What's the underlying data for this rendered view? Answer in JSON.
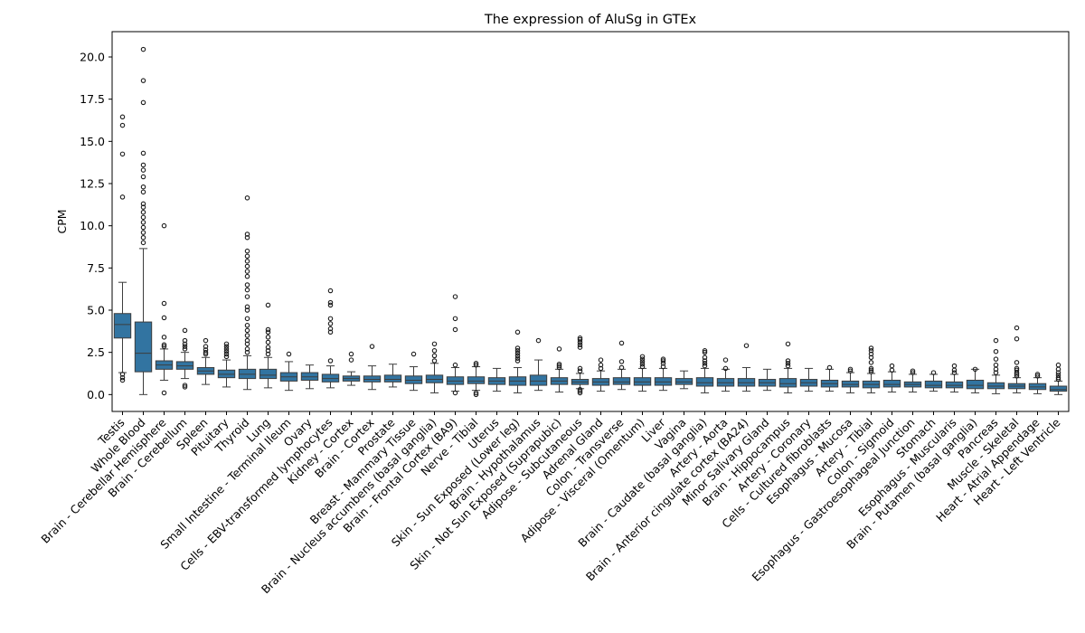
{
  "chart_data": {
    "type": "box",
    "title": "The expression of AluSg in GTEx",
    "xlabel": "",
    "ylabel": "CPM",
    "ylim": [
      -1.0,
      21.5
    ],
    "yticks": [
      0.0,
      2.5,
      5.0,
      7.5,
      10.0,
      12.5,
      15.0,
      17.5,
      20.0
    ],
    "ytick_labels": [
      "0.0",
      "2.5",
      "5.0",
      "7.5",
      "10.0",
      "12.5",
      "15.0",
      "17.5",
      "20.0"
    ],
    "grid": false,
    "box_color": "#3274a1",
    "categories": [
      "Testis",
      "Whole Blood",
      "Brain - Cerebellar Hemisphere",
      "Brain - Cerebellum",
      "Spleen",
      "Pituitary",
      "Thyroid",
      "Lung",
      "Small Intestine - Terminal Ileum",
      "Ovary",
      "Cells - EBV-transformed lymphocytes",
      "Kidney - Cortex",
      "Brain - Cortex",
      "Prostate",
      "Breast - Mammary Tissue",
      "Brain - Nucleus accumbens (basal ganglia)",
      "Brain - Frontal Cortex (BA9)",
      "Nerve - Tibial",
      "Uterus",
      "Skin - Sun Exposed (Lower leg)",
      "Brain - Hypothalamus",
      "Skin - Not Sun Exposed (Suprapubic)",
      "Adipose - Subcutaneous",
      "Adrenal Gland",
      "Colon - Transverse",
      "Adipose - Visceral (Omentum)",
      "Liver",
      "Vagina",
      "Brain - Caudate (basal ganglia)",
      "Artery - Aorta",
      "Brain - Anterior cingulate cortex (BA24)",
      "Minor Salivary Gland",
      "Brain - Hippocampus",
      "Artery - Coronary",
      "Cells - Cultured fibroblasts",
      "Esophagus - Mucosa",
      "Artery - Tibial",
      "Colon - Sigmoid",
      "Esophagus - Gastroesophageal Junction",
      "Stomach",
      "Esophagus - Muscularis",
      "Brain - Putamen (basal ganglia)",
      "Pancreas",
      "Muscle - Skeletal",
      "Heart - Atrial Appendage",
      "Heart - Left Ventricle"
    ],
    "boxes": [
      {
        "whislo": 1.3,
        "q1": 3.35,
        "med": 4.15,
        "q3": 4.8,
        "whishi": 6.65,
        "fliers": [
          1.2,
          1.0,
          0.85,
          11.7,
          14.25,
          15.95,
          16.45
        ]
      },
      {
        "whislo": 0.0,
        "q1": 1.35,
        "med": 2.45,
        "q3": 4.3,
        "whishi": 8.65,
        "fliers": [
          9.0,
          9.3,
          9.6,
          9.9,
          10.2,
          10.5,
          10.8,
          11.1,
          11.3,
          12.0,
          12.3,
          12.9,
          13.3,
          13.6,
          14.3,
          17.3,
          18.6,
          20.45
        ]
      },
      {
        "whislo": 0.85,
        "q1": 1.5,
        "med": 1.75,
        "q3": 2.0,
        "whishi": 2.7,
        "fliers": [
          0.1,
          2.85,
          2.95,
          3.4,
          4.55,
          5.4,
          10.0
        ]
      },
      {
        "whislo": 0.95,
        "q1": 1.5,
        "med": 1.7,
        "q3": 1.95,
        "whishi": 2.5,
        "fliers": [
          0.45,
          0.55,
          2.7,
          2.85,
          3.0,
          3.2,
          3.8
        ]
      },
      {
        "whislo": 0.6,
        "q1": 1.2,
        "med": 1.4,
        "q3": 1.6,
        "whishi": 2.2,
        "fliers": [
          2.4,
          2.5,
          2.65,
          2.85,
          3.2
        ]
      },
      {
        "whislo": 0.45,
        "q1": 1.0,
        "med": 1.2,
        "q3": 1.45,
        "whishi": 2.05,
        "fliers": [
          2.25,
          2.4,
          2.55,
          2.7,
          2.85,
          3.0
        ]
      },
      {
        "whislo": 0.3,
        "q1": 0.95,
        "med": 1.2,
        "q3": 1.5,
        "whishi": 2.3,
        "fliers": [
          2.5,
          2.7,
          3.0,
          3.2,
          3.5,
          3.8,
          4.1,
          4.5,
          5.0,
          5.2,
          5.8,
          6.2,
          6.5,
          7.0,
          7.3,
          7.6,
          7.9,
          8.2,
          8.5,
          9.3,
          9.5,
          11.65
        ]
      },
      {
        "whislo": 0.4,
        "q1": 0.95,
        "med": 1.15,
        "q3": 1.5,
        "whishi": 2.2,
        "fliers": [
          2.4,
          2.6,
          2.8,
          3.1,
          3.4,
          3.7,
          3.85,
          5.3
        ]
      },
      {
        "whislo": 0.25,
        "q1": 0.8,
        "med": 1.05,
        "q3": 1.3,
        "whishi": 1.95,
        "fliers": [
          2.4
        ]
      },
      {
        "whislo": 0.35,
        "q1": 0.85,
        "med": 1.05,
        "q3": 1.3,
        "whishi": 1.75,
        "fliers": []
      },
      {
        "whislo": 0.4,
        "q1": 0.75,
        "med": 0.95,
        "q3": 1.2,
        "whishi": 1.7,
        "fliers": [
          2.0,
          3.7,
          3.9,
          4.2,
          4.5,
          5.3,
          5.45,
          6.15
        ]
      },
      {
        "whislo": 0.55,
        "q1": 0.8,
        "med": 0.95,
        "q3": 1.1,
        "whishi": 1.35,
        "fliers": [
          2.05,
          2.4
        ]
      },
      {
        "whislo": 0.3,
        "q1": 0.75,
        "med": 0.9,
        "q3": 1.1,
        "whishi": 1.7,
        "fliers": [
          2.85
        ]
      },
      {
        "whislo": 0.45,
        "q1": 0.75,
        "med": 0.9,
        "q3": 1.15,
        "whishi": 1.8,
        "fliers": []
      },
      {
        "whislo": 0.25,
        "q1": 0.65,
        "med": 0.85,
        "q3": 1.1,
        "whishi": 1.65,
        "fliers": [
          2.4
        ]
      },
      {
        "whislo": 0.1,
        "q1": 0.7,
        "med": 0.9,
        "q3": 1.15,
        "whishi": 1.85,
        "fliers": [
          2.0,
          2.3,
          2.6,
          3.0
        ]
      },
      {
        "whislo": 0.2,
        "q1": 0.6,
        "med": 0.8,
        "q3": 1.05,
        "whishi": 1.6,
        "fliers": [
          0.1,
          1.75,
          3.85,
          4.5,
          5.8
        ]
      },
      {
        "whislo": 0.25,
        "q1": 0.65,
        "med": 0.8,
        "q3": 1.05,
        "whishi": 1.65,
        "fliers": [
          0.0,
          0.1,
          1.75,
          1.85
        ]
      },
      {
        "whislo": 0.2,
        "q1": 0.6,
        "med": 0.8,
        "q3": 1.0,
        "whishi": 1.55,
        "fliers": []
      },
      {
        "whislo": 0.1,
        "q1": 0.55,
        "med": 0.8,
        "q3": 1.05,
        "whishi": 1.6,
        "fliers": [
          2.0,
          2.15,
          2.3,
          2.45,
          2.6,
          2.75,
          3.7
        ]
      },
      {
        "whislo": 0.25,
        "q1": 0.55,
        "med": 0.8,
        "q3": 1.15,
        "whishi": 2.05,
        "fliers": [
          3.2
        ]
      },
      {
        "whislo": 0.15,
        "q1": 0.6,
        "med": 0.8,
        "q3": 1.0,
        "whishi": 1.5,
        "fliers": [
          1.6,
          1.7,
          1.8,
          2.7
        ]
      },
      {
        "whislo": 0.35,
        "q1": 0.6,
        "med": 0.75,
        "q3": 0.9,
        "whishi": 1.25,
        "fliers": [
          0.1,
          0.2,
          0.3,
          1.4,
          1.55,
          2.8,
          2.95,
          3.1,
          3.25,
          3.35
        ]
      },
      {
        "whislo": 0.2,
        "q1": 0.55,
        "med": 0.75,
        "q3": 0.95,
        "whishi": 1.4,
        "fliers": [
          1.55,
          1.75,
          2.05
        ]
      },
      {
        "whislo": 0.3,
        "q1": 0.6,
        "med": 0.75,
        "q3": 1.0,
        "whishi": 1.5,
        "fliers": [
          1.6,
          1.95,
          3.05
        ]
      },
      {
        "whislo": 0.2,
        "q1": 0.55,
        "med": 0.75,
        "q3": 1.0,
        "whishi": 1.55,
        "fliers": [
          1.65,
          1.8,
          1.95,
          2.1,
          2.25
        ]
      },
      {
        "whislo": 0.25,
        "q1": 0.55,
        "med": 0.75,
        "q3": 1.0,
        "whishi": 1.55,
        "fliers": [
          1.65,
          1.85,
          2.0,
          2.1
        ]
      },
      {
        "whislo": 0.35,
        "q1": 0.6,
        "med": 0.75,
        "q3": 0.95,
        "whishi": 1.4,
        "fliers": []
      },
      {
        "whislo": 0.1,
        "q1": 0.5,
        "med": 0.7,
        "q3": 1.0,
        "whishi": 1.55,
        "fliers": [
          1.7,
          1.85,
          2.0,
          2.2,
          2.5,
          2.6
        ]
      },
      {
        "whislo": 0.2,
        "q1": 0.5,
        "med": 0.7,
        "q3": 0.95,
        "whishi": 1.5,
        "fliers": [
          1.55,
          2.05
        ]
      },
      {
        "whislo": 0.2,
        "q1": 0.5,
        "med": 0.7,
        "q3": 0.95,
        "whishi": 1.6,
        "fliers": [
          2.9
        ]
      },
      {
        "whislo": 0.25,
        "q1": 0.5,
        "med": 0.7,
        "q3": 0.9,
        "whishi": 1.5,
        "fliers": []
      },
      {
        "whislo": 0.1,
        "q1": 0.45,
        "med": 0.65,
        "q3": 0.95,
        "whishi": 1.55,
        "fliers": [
          1.7,
          1.85,
          2.0,
          3.0
        ]
      },
      {
        "whislo": 0.2,
        "q1": 0.5,
        "med": 0.7,
        "q3": 0.9,
        "whishi": 1.55,
        "fliers": []
      },
      {
        "whislo": 0.2,
        "q1": 0.45,
        "med": 0.65,
        "q3": 0.85,
        "whishi": 1.5,
        "fliers": [
          1.6
        ]
      },
      {
        "whislo": 0.1,
        "q1": 0.45,
        "med": 0.6,
        "q3": 0.8,
        "whishi": 1.3,
        "fliers": [
          1.4,
          1.5
        ]
      },
      {
        "whislo": 0.1,
        "q1": 0.4,
        "med": 0.6,
        "q3": 0.8,
        "whishi": 1.25,
        "fliers": [
          1.35,
          1.45,
          1.55,
          1.9,
          2.2,
          2.4,
          2.6,
          2.75
        ]
      },
      {
        "whislo": 0.15,
        "q1": 0.45,
        "med": 0.6,
        "q3": 0.85,
        "whishi": 1.35,
        "fliers": [
          1.45,
          1.7
        ]
      },
      {
        "whislo": 0.15,
        "q1": 0.45,
        "med": 0.6,
        "q3": 0.75,
        "whishi": 1.2,
        "fliers": [
          1.3,
          1.4
        ]
      },
      {
        "whislo": 0.2,
        "q1": 0.4,
        "med": 0.55,
        "q3": 0.8,
        "whishi": 1.2,
        "fliers": [
          1.3
        ]
      },
      {
        "whislo": 0.15,
        "q1": 0.4,
        "med": 0.55,
        "q3": 0.75,
        "whishi": 1.2,
        "fliers": [
          1.3,
          1.45,
          1.7
        ]
      },
      {
        "whislo": 0.1,
        "q1": 0.35,
        "med": 0.55,
        "q3": 0.85,
        "whishi": 1.5,
        "fliers": [
          1.5
        ]
      },
      {
        "whislo": 0.05,
        "q1": 0.35,
        "med": 0.5,
        "q3": 0.7,
        "whishi": 1.15,
        "fliers": [
          1.3,
          1.5,
          1.75,
          2.1,
          2.55,
          3.2
        ]
      },
      {
        "whislo": 0.1,
        "q1": 0.35,
        "med": 0.5,
        "q3": 0.65,
        "whishi": 1.0,
        "fliers": [
          1.1,
          1.2,
          1.3,
          1.45,
          1.55,
          1.9,
          3.3,
          3.95
        ]
      },
      {
        "whislo": 0.05,
        "q1": 0.3,
        "med": 0.45,
        "q3": 0.65,
        "whishi": 1.0,
        "fliers": [
          1.1,
          1.2
        ]
      },
      {
        "whislo": 0.0,
        "q1": 0.2,
        "med": 0.3,
        "q3": 0.5,
        "whishi": 0.8,
        "fliers": [
          0.9,
          1.0,
          1.15,
          1.3,
          1.5,
          1.75
        ]
      }
    ]
  }
}
